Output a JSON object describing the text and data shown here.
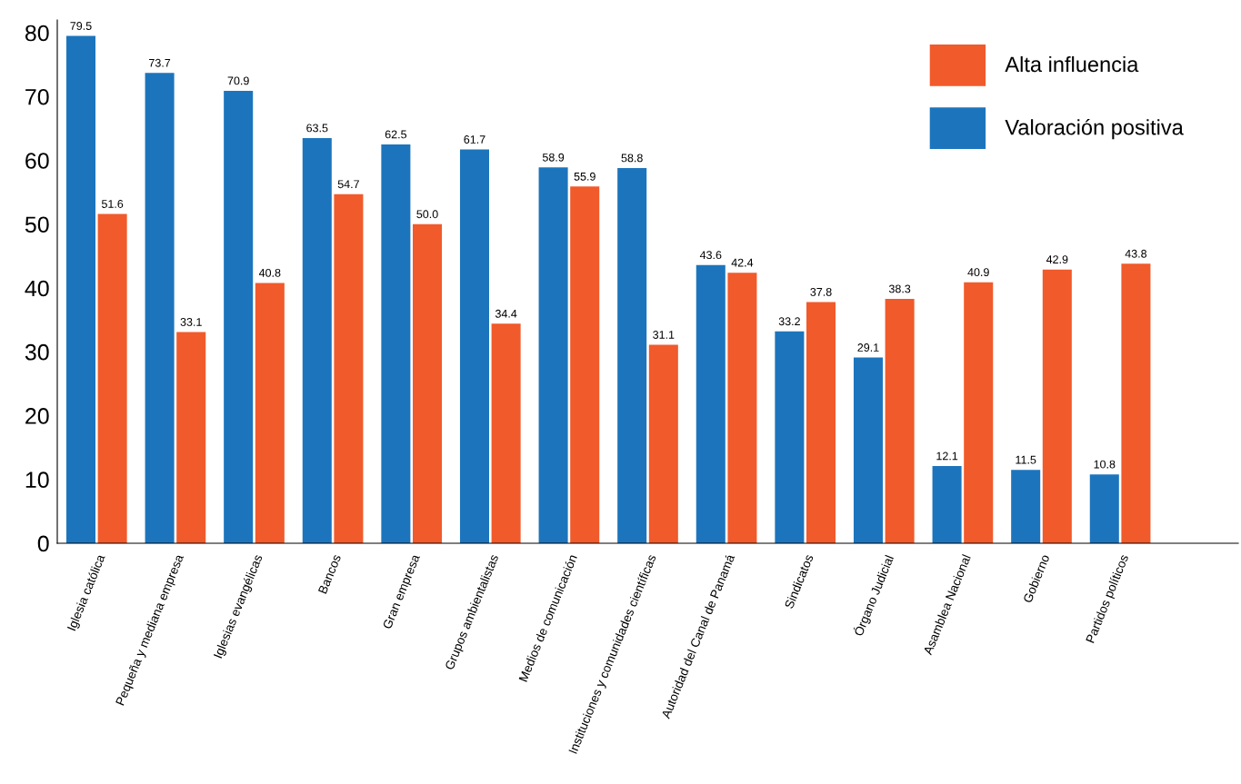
{
  "chart_data": {
    "type": "bar",
    "categories": [
      "Iglesia católica",
      "Pequeña y mediana empresa",
      "Iglesias evangélicas",
      "Bancos",
      "Gran empresa",
      "Grupos ambientalistas",
      "Medios de comunicación",
      "Instituciones y comunidades científicas",
      "Autoridad del Canal de Panamá",
      "Sindicatos",
      "Órgano Judicial",
      "Asamblea Nacional",
      "Gobierno",
      "Partidos políticos",
      null
    ],
    "series": [
      {
        "name": "Valoración positiva",
        "color": "#1c75bc",
        "values": [
          79.5,
          73.7,
          70.9,
          63.5,
          62.5,
          61.7,
          58.9,
          58.8,
          43.6,
          33.2,
          29.1,
          12.1,
          11.5,
          10.8,
          0
        ],
        "value_labels": [
          "79.5",
          "73.7",
          "70.9",
          "63.5",
          "62.5",
          "61.7",
          "58.9",
          "58.8",
          "43.6",
          "33.2",
          "29.1",
          "12.1",
          "11.5",
          "10.8",
          null
        ]
      },
      {
        "name": "Alta influencia",
        "color": "#f15a2b",
        "values": [
          51.6,
          33.1,
          40.8,
          54.7,
          50.0,
          34.4,
          55.9,
          31.1,
          42.4,
          37.8,
          38.3,
          40.9,
          42.9,
          43.8,
          0
        ],
        "value_labels": [
          "51.6",
          "33.1",
          "40.8",
          "54.7",
          "50.0",
          "34.4",
          "55.9",
          "31.1",
          "42.4",
          "37.8",
          "38.3",
          "40.9",
          "42.9",
          "43.8",
          null
        ]
      }
    ],
    "ylim": [
      0,
      82
    ],
    "yticks": [
      0,
      10,
      20,
      30,
      40,
      50,
      60,
      70,
      80
    ],
    "grid": false,
    "legend": "top right"
  }
}
